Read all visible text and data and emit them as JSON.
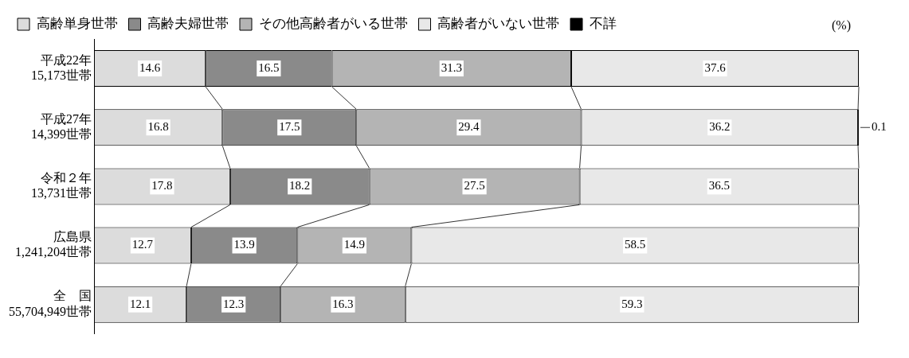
{
  "chart_data": {
    "type": "bar",
    "orientation": "horizontal",
    "stacked": true,
    "categories": [
      "平成22年\n15,173世帯",
      "平成27年\n14,399世帯",
      "令和２年\n13,731世帯",
      "広島県\n1,241,204世帯",
      "全　国\n55,704,949世帯"
    ],
    "series": [
      {
        "name": "高齢単身世帯",
        "color": "#dcdcdc",
        "values": [
          14.6,
          16.8,
          17.8,
          12.7,
          12.1
        ]
      },
      {
        "name": "高齢夫婦世帯",
        "color": "#8a8a8a",
        "values": [
          16.5,
          17.5,
          18.2,
          13.9,
          12.3
        ]
      },
      {
        "name": "その他高齢者がいる世帯",
        "color": "#b4b4b4",
        "values": [
          31.3,
          29.4,
          27.5,
          14.9,
          16.3
        ]
      },
      {
        "name": "高齢者がいない世帯",
        "color": "#e8e8e8",
        "values": [
          37.6,
          36.2,
          36.5,
          58.5,
          59.3
        ]
      },
      {
        "name": "不詳",
        "color": "#000000",
        "values": [
          null,
          0.1,
          null,
          null,
          null
        ]
      }
    ],
    "xlim": [
      0,
      100
    ],
    "tick_labels": "y",
    "grid": false,
    "legend": "top",
    "data_labels": true,
    "annotations": [
      "(%)"
    ]
  }
}
